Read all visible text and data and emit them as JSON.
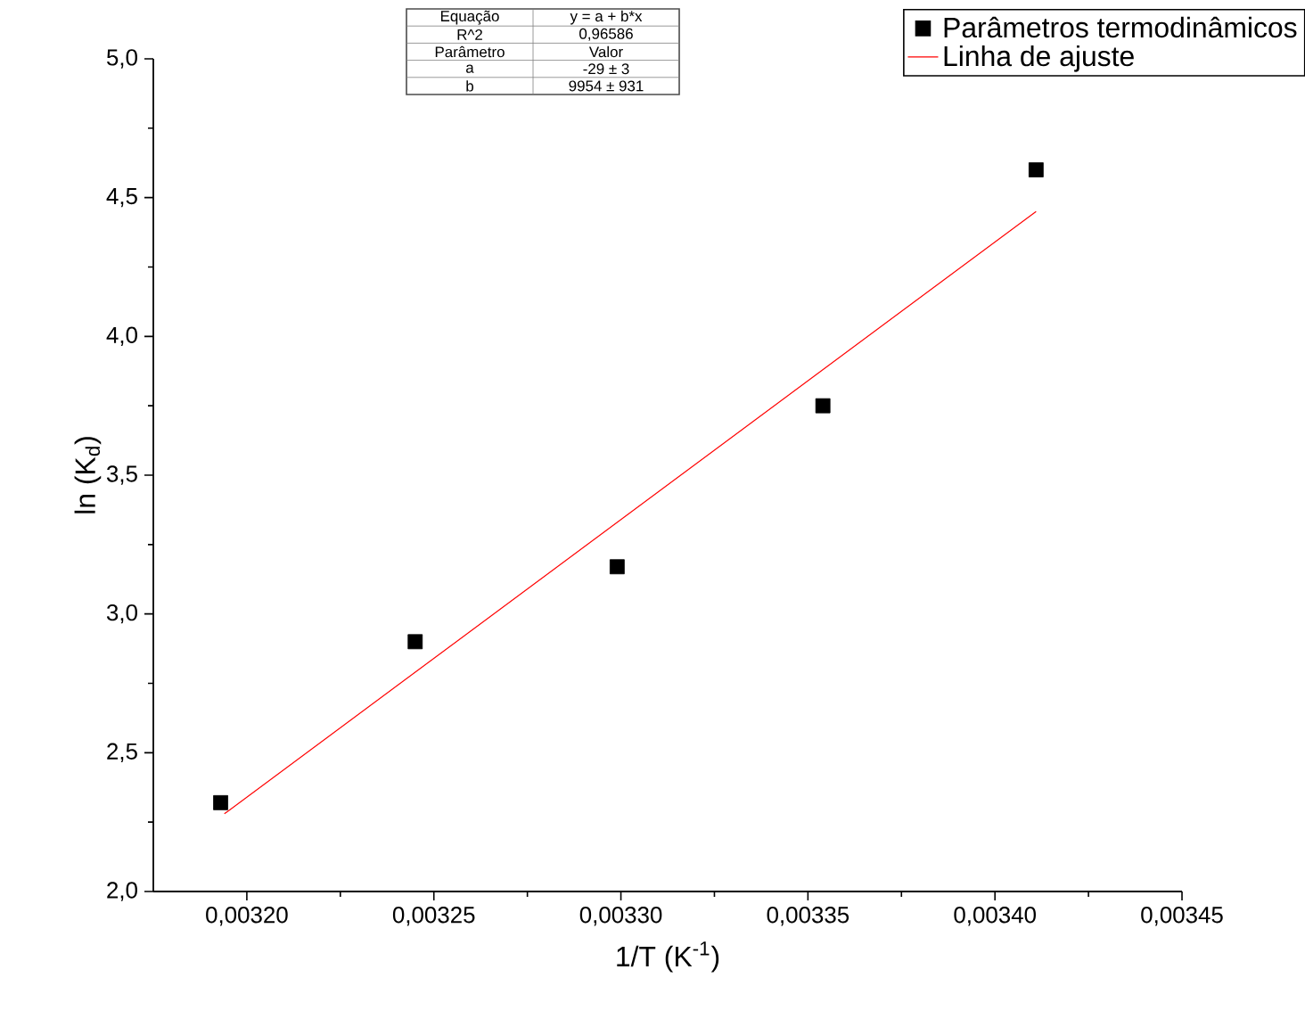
{
  "chart_data": {
    "type": "scatter",
    "xlabel": "1/T (K$^{-1}$)",
    "ylabel": "ln (K$_{d}$)",
    "xlim": [
      0.003175,
      0.00345
    ],
    "ylim": [
      2.0,
      5.0
    ],
    "xticks": [
      {
        "value": 0.0032,
        "label": "0,00320"
      },
      {
        "value": 0.00325,
        "label": "0,00325"
      },
      {
        "value": 0.0033,
        "label": "0,00330"
      },
      {
        "value": 0.00335,
        "label": "0,00335"
      },
      {
        "value": 0.0034,
        "label": "0,00340"
      },
      {
        "value": 0.00345,
        "label": "0,00345"
      }
    ],
    "yticks": [
      {
        "value": 2.0,
        "label": "2,0"
      },
      {
        "value": 2.5,
        "label": "2,5"
      },
      {
        "value": 3.0,
        "label": "3,0"
      },
      {
        "value": 3.5,
        "label": "3,5"
      },
      {
        "value": 4.0,
        "label": "4,0"
      },
      {
        "value": 4.5,
        "label": "4,5"
      },
      {
        "value": 5.0,
        "label": "5,0"
      }
    ],
    "x": [
      0.003193,
      0.003245,
      0.003299,
      0.003354,
      0.003411
    ],
    "series": [
      {
        "name": "Parâmetros termodinâmicos",
        "marker": "square",
        "color": "#000000",
        "values": [
          2.32,
          2.9,
          3.17,
          3.75,
          4.6
        ]
      },
      {
        "name": "Linha de ajuste",
        "type": "line",
        "marker": "none",
        "line_style": "solid",
        "color": "#ff0000",
        "x": [
          0.003194,
          0.003411
        ],
        "values": [
          2.28,
          4.45
        ]
      }
    ],
    "legend": "top right",
    "grid": false,
    "annotations": [
      "Equação",
      "y = a + b*x",
      "R^2",
      "0,96586",
      "Parâmetro",
      "Valor",
      "a",
      "-29 ± 3",
      "b",
      "9954 ±  931"
    ]
  }
}
